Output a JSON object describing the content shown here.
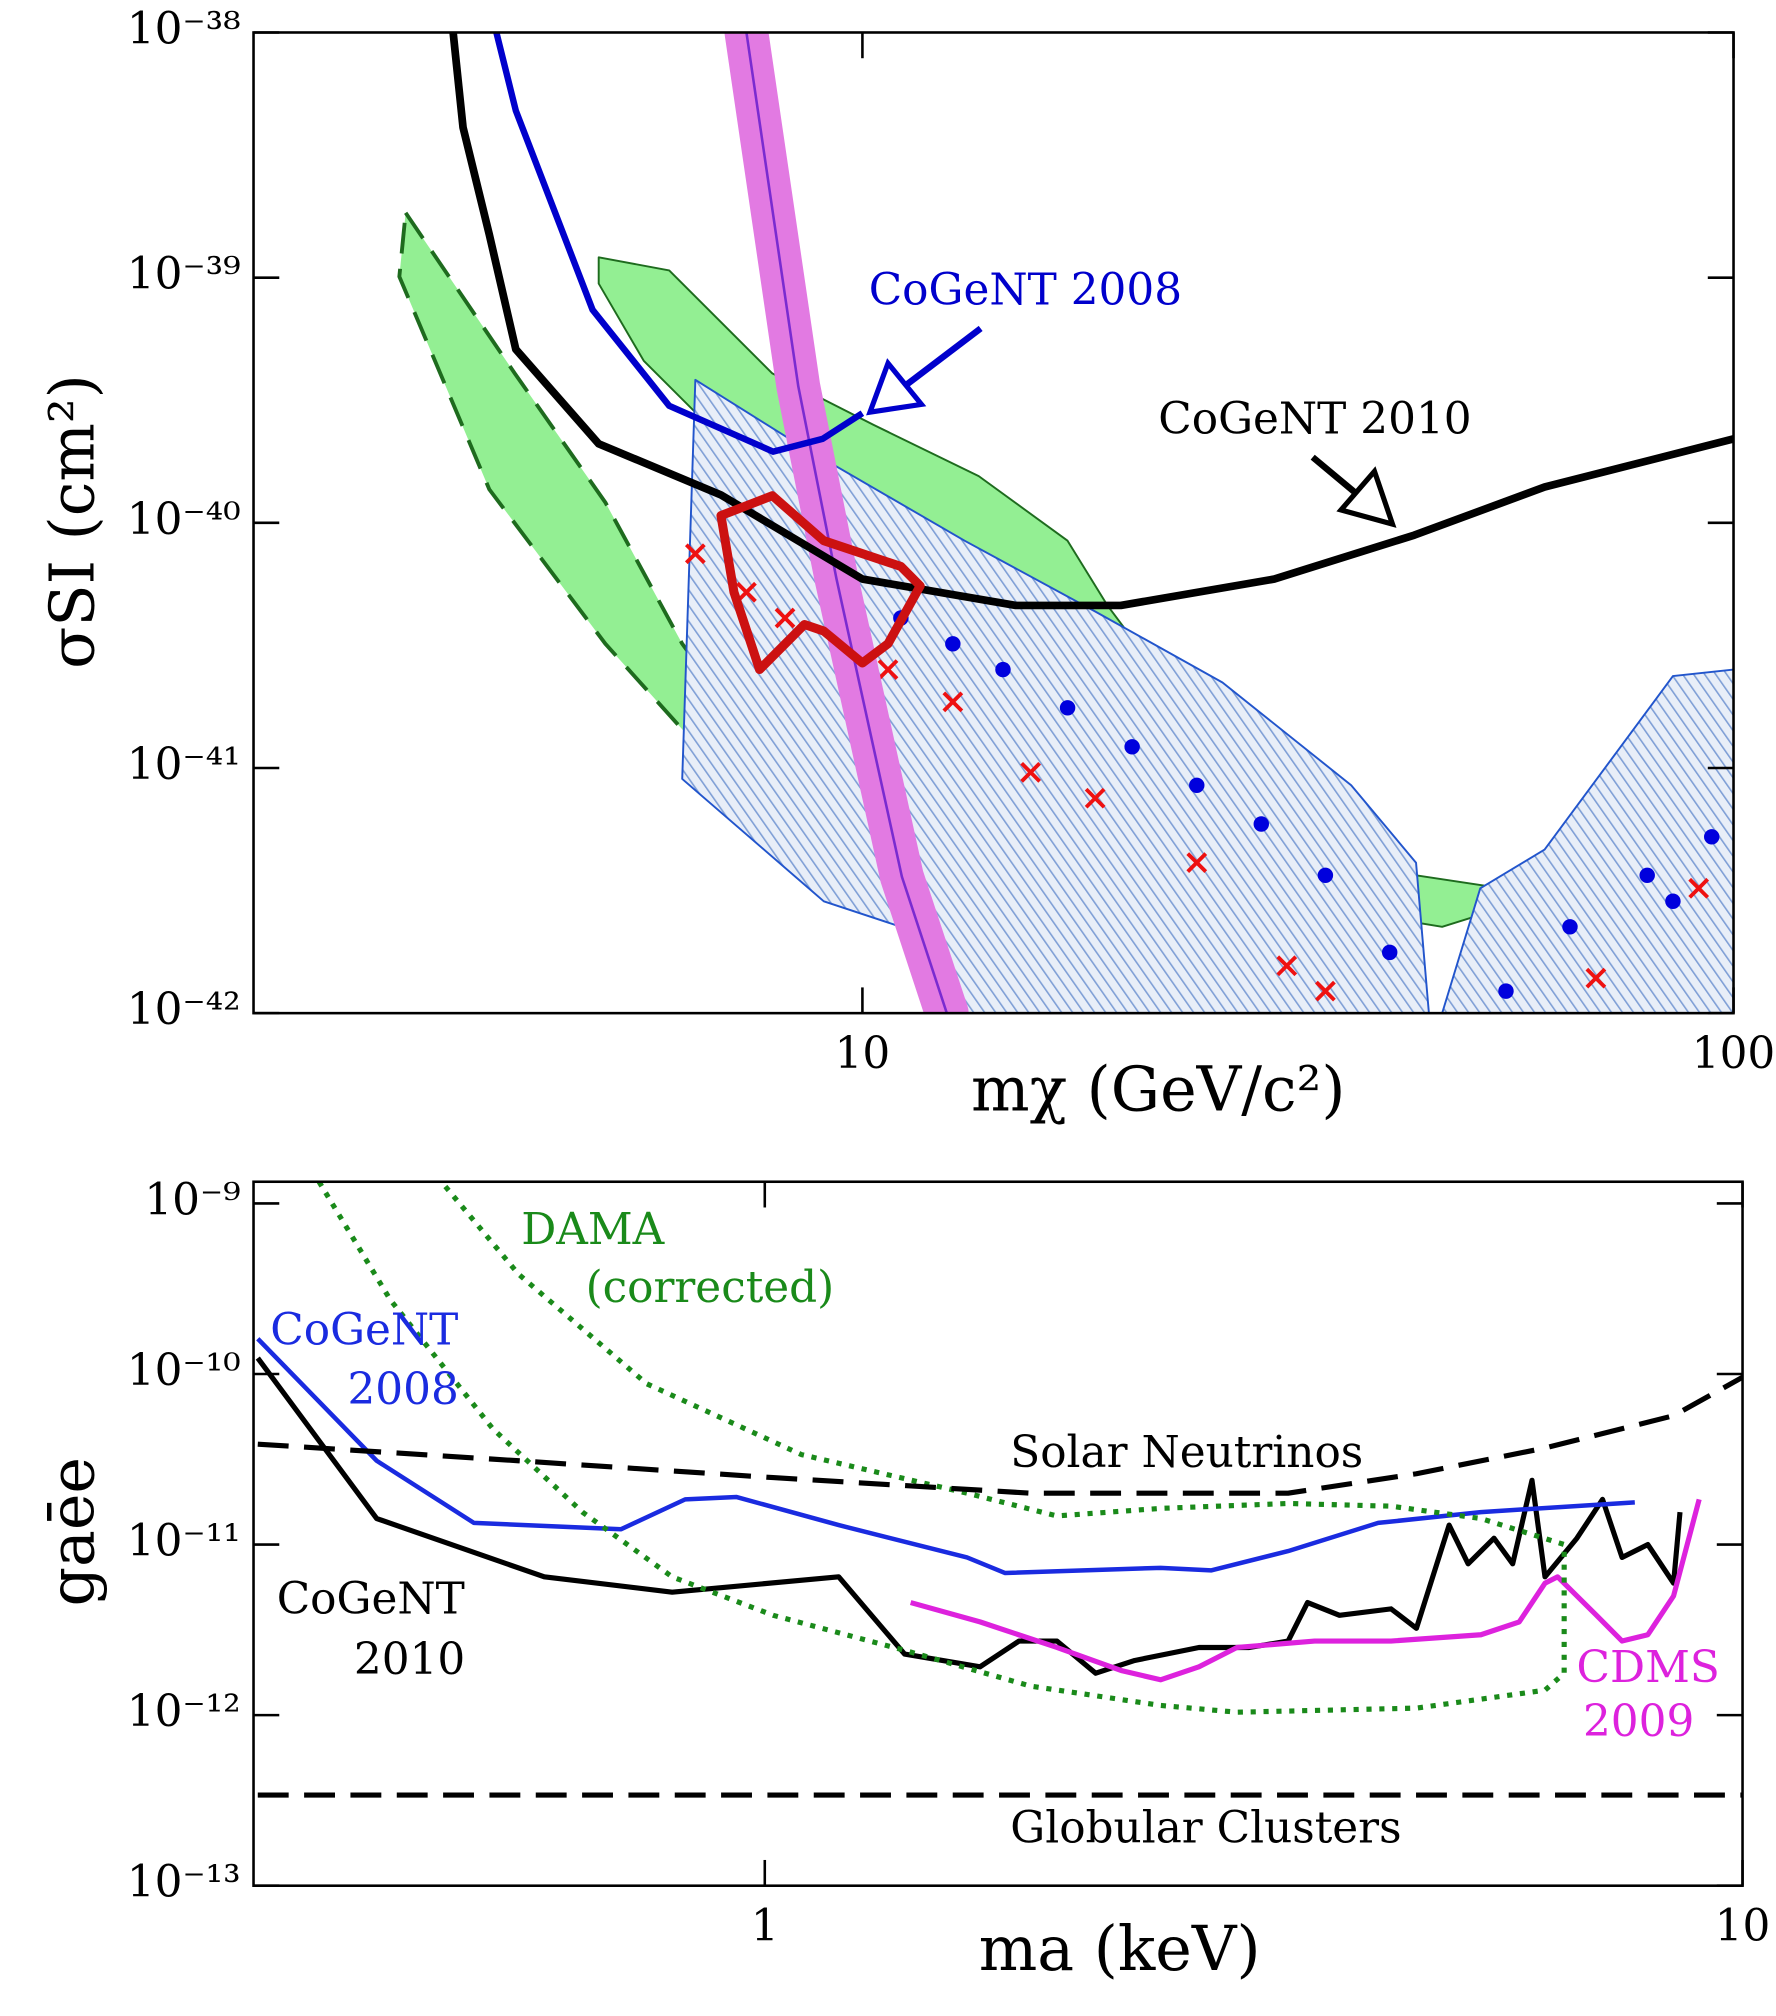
{
  "chart_data": [
    {
      "type": "line",
      "xscale": "log",
      "yscale": "log",
      "x_label": "mχ (GeV/c²)",
      "y_label": "σSI (cm²)",
      "xlim": [
        2,
        100
      ],
      "ylim": [
        1e-42,
        1e-38
      ],
      "xticks": [
        10,
        100
      ],
      "yticks": [
        {
          "value": 1e-42,
          "label": "10⁻⁴²"
        },
        {
          "value": 1e-41,
          "label": "10⁻⁴¹"
        },
        {
          "value": 1e-40,
          "label": "10⁻⁴⁰"
        },
        {
          "value": 1e-39,
          "label": "10⁻³⁹"
        },
        {
          "value": 1e-38,
          "label": "10⁻³⁸"
        }
      ],
      "series": [
        {
          "type": "area",
          "color": "#1e6b1e",
          "fill": "#93ef93",
          "style": "dashed",
          "width": 3,
          "x": [
            2.99,
            3.99,
            5.07,
            6.21,
            8.15,
            11.07,
            14.5,
            17.2,
            15.6,
            11.9,
            9.03,
            6.88,
            5.07,
            3.73,
            2.94
          ],
          "values": [
            1.84e-39,
            4.07e-40,
            1.21e-40,
            3.21e-41,
            8.5e-42,
            5.24e-42,
            4.53e-42,
            3.87e-42,
            3.04e-42,
            3.23e-42,
            4.65e-42,
            9.6e-42,
            3.21e-41,
            1.37e-40,
            1.01e-39
          ]
        },
        {
          "type": "area",
          "color": "#1e6b1e",
          "fill": "#93ef93",
          "width": 1.5,
          "x": [
            4.98,
            6.0,
            7.88,
            10.3,
            13.6,
            17.2,
            19.1,
            23.4,
            30.7,
            43.2,
            60.7,
            46.3,
            30.7,
            21.9,
            16.7,
            13.6,
            11.07,
            9.03,
            6.88,
            5.61,
            4.98
          ],
          "values": [
            1.21e-39,
            1.07e-39,
            4.07e-40,
            2.51e-40,
            1.55e-40,
            8.45e-41,
            4.62e-41,
            1.76e-41,
            7.53e-42,
            3.65e-42,
            3.04e-42,
            2.25e-42,
            2.86e-42,
            5.91e-42,
            1.56e-41,
            3.62e-41,
            6.64e-41,
            1.07e-40,
            2.22e-40,
            4.58e-40,
            9.46e-40
          ]
        },
        {
          "type": "area",
          "color": "#2255cc",
          "hatch": true,
          "width": 1.5,
          "x": [
            6.43,
            8.44,
            13.1,
            18.5,
            25.9,
            36.4,
            43.2,
            44.7,
            46.3,
            51.2,
            60.7,
            85.2,
            100,
            100,
            13.1,
            11.07,
            9.03,
            6.21
          ],
          "values": [
            3.83e-40,
            2.09e-40,
            8.45e-41,
            4.35e-41,
            2.23e-41,
            8.5e-42,
            4.11e-42,
            1e-42,
            1e-42,
            3.23e-42,
            4.65e-42,
            2.37e-41,
            2.52e-41,
            1e-42,
            1e-42,
            2.25e-42,
            2.86e-42,
            9.02e-42
          ]
        },
        {
          "type": "scatter",
          "marker": "dot",
          "color": "#0000dd",
          "x": [
            9.34,
            11.07,
            12.7,
            14.5,
            17.2,
            20.4,
            24.2,
            28.7,
            34.0,
            40.3,
            54.8,
            64.9,
            79.6,
            85.2,
            94.4
          ],
          "values": [
            5.21e-41,
            4.09e-41,
            3.21e-41,
            2.52e-41,
            1.76e-41,
            1.22e-41,
            8.5e-42,
            5.91e-42,
            3.65e-42,
            1.77e-42,
            1.23e-42,
            2.25e-42,
            3.65e-42,
            2.86e-42,
            5.24e-42
          ]
        },
        {
          "type": "scatter",
          "marker": "x",
          "color": "#ee1111",
          "x": [
            6.43,
            7.36,
            8.15,
            10.7,
            12.7,
            15.6,
            18.5,
            24.2,
            30.7,
            34.0,
            69.5,
            91.2
          ],
          "values": [
            7.48e-41,
            5.21e-41,
            4.09e-41,
            2.52e-41,
            1.86e-41,
            9.6e-42,
            7.53e-42,
            4.11e-42,
            1.56e-42,
            1.23e-42,
            1.39e-42,
            3.23e-42
          ]
        },
        {
          "type": "line",
          "color": "#7a2bd0",
          "band_color": "#e27ae2",
          "width": 2,
          "x": [
            7.36,
            8.44,
            9.34,
            11.1,
            12.5
          ],
          "values": [
            1e-38,
            3.6e-40,
            5.9e-41,
            3.6e-42,
            1e-42
          ]
        },
        {
          "type": "line",
          "name": "CoGeNT 2010",
          "color": "#000000",
          "width": 6,
          "x": [
            3.39,
            3.48,
            3.73,
            4.0,
            4.98,
            6.88,
            10,
            15,
            19.8,
            29.7,
            43,
            60.7,
            100
          ],
          "values": [
            1e-38,
            4.1e-39,
            1.5e-39,
            5.1e-40,
            2.1e-40,
            1.3e-40,
            5.9e-41,
            4.6e-41,
            4.6e-41,
            5.9e-41,
            8.9e-41,
            1.4e-40,
            2.2e-40
          ]
        },
        {
          "type": "line",
          "name": "CoGeNT 2008",
          "color": "#0000cc",
          "width": 5,
          "x": [
            3.8,
            4.0,
            4.9,
            6.0,
            7.9,
            9.0,
            10
          ],
          "values": [
            1e-38,
            4.8e-39,
            7.4e-40,
            3e-40,
            1.95e-40,
            2.2e-40,
            2.8e-40
          ]
        },
        {
          "type": "area",
          "color": "#cc1111",
          "width": 7,
          "x": [
            6.88,
            7.88,
            9.03,
            11.07,
            11.65,
            10.7,
            10,
            9.03,
            8.58,
            7.62,
            7.12
          ],
          "values": [
            1.07e-40,
            1.29e-40,
            8.45e-41,
            6.64e-41,
            5.53e-41,
            3.21e-41,
            2.68e-41,
            3.62e-41,
            3.85e-41,
            2.52e-41,
            5.21e-41
          ]
        }
      ]
    },
    {
      "type": "line",
      "xscale": "log",
      "yscale": "log",
      "x_label": "ma (keV)",
      "y_label": "gaēe",
      "xlim": [
        0.3,
        10
      ],
      "ylim": [
        1e-13,
        1.34e-09
      ],
      "xticks": [
        1,
        10
      ],
      "yticks": [
        {
          "value": 1e-13,
          "label": "10⁻¹³"
        },
        {
          "value": 1e-12,
          "label": "10⁻¹²"
        },
        {
          "value": 1e-11,
          "label": "10⁻¹¹"
        },
        {
          "value": 1e-10,
          "label": "10⁻¹⁰"
        },
        {
          "value": 1e-09,
          "label": "10⁻⁹"
        }
      ],
      "series": [
        {
          "type": "line",
          "name": "CoGeNT 2010",
          "color": "#000000",
          "width": 4,
          "x": [
            0.303,
            0.401,
            0.595,
            0.804,
            1.19,
            1.39,
            1.66,
            1.82,
            1.99,
            2.18,
            2.39,
            2.78,
            3.13,
            3.43,
            3.59,
            3.87,
            4.37,
            4.64,
            5.01,
            5.24,
            5.57,
            5.82,
            6.09,
            6.28,
            6.77,
            7.19,
            7.53,
            8.0,
            8.5,
            8.63
          ],
          "values": [
            1.24e-10,
            1.42e-11,
            6.47e-12,
            5.26e-12,
            6.47e-12,
            2.28e-12,
            1.92e-12,
            2.72e-12,
            2.72e-12,
            1.76e-12,
            2.09e-12,
            2.49e-12,
            2.49e-12,
            2.72e-12,
            4.57e-12,
            3.85e-12,
            4.2e-12,
            3.23e-12,
            1.3e-11,
            7.71e-12,
            1.09e-11,
            7.71e-12,
            2.38e-11,
            6.47e-12,
            1.09e-11,
            1.84e-11,
            8.41e-12,
            1e-11,
            5.94e-12,
            1.55e-11
          ]
        },
        {
          "type": "line",
          "name": "CoGeNT 2008",
          "color": "#1a2be0",
          "width": 3.5,
          "x": [
            0.303,
            0.401,
            0.504,
            0.713,
            0.829,
            0.936,
            1.19,
            1.61,
            1.76,
            2.54,
            2.86,
            3.43,
            4.24,
            5.4,
            7.76
          ],
          "values": [
            1.61e-10,
            3.1e-11,
            1.34e-11,
            1.23e-11,
            1.84e-11,
            1.9e-11,
            1.3e-11,
            8.41e-12,
            6.82e-12,
            7.31e-12,
            7.06e-12,
            9.16e-12,
            1.34e-11,
            1.55e-11,
            1.77e-11
          ]
        },
        {
          "type": "line",
          "name": "CDMS 2009",
          "color": "#dd22dd",
          "width": 4,
          "x": [
            1.41,
            1.66,
            1.99,
            2.32,
            2.54,
            2.78,
            3.04,
            3.65,
            4.37,
            5.4,
            5.91,
            6.28,
            6.47,
            7.09,
            7.53,
            8.0,
            8.5,
            9.03
          ],
          "values": [
            4.57e-12,
            3.52e-12,
            2.49e-12,
            1.82e-12,
            1.61e-12,
            1.92e-12,
            2.49e-12,
            2.72e-12,
            2.72e-12,
            2.96e-12,
            3.52e-12,
            5.94e-12,
            6.47e-12,
            3.85e-12,
            2.72e-12,
            2.96e-12,
            4.99e-12,
            1.84e-11
          ]
        },
        {
          "type": "line",
          "name": "DAMA (corrected)",
          "color": "#1a8a1a",
          "width": 4,
          "style": "dotted",
          "x": [
            0.35,
            0.414,
            0.527,
            0.651,
            0.804,
            1.02,
            1.39,
            1.87,
            2.54,
            3.04,
            4.64,
            6.28,
            6.57,
            6.57,
            5.4,
            4.37,
            3.43,
            2.54,
            1.99,
            1.61,
            1.09,
            0.757,
            0.56,
            0.467
          ],
          "values": [
            1.34e-09,
            2.72e-10,
            4.78e-11,
            1.55e-11,
            6.47e-12,
            3.85e-12,
            2.4e-12,
            1.48e-12,
            1.14e-12,
            1.04e-12,
            1.1e-12,
            1.4e-12,
            1.76e-12,
            1e-11,
            1.42e-11,
            1.68e-11,
            1.74e-11,
            1.63e-11,
            1.47e-11,
            2e-11,
            3.37e-11,
            8.77e-11,
            3.85e-10,
            1.34e-09
          ]
        },
        {
          "type": "line",
          "name": "Solar Neutrinos",
          "color": "#000000",
          "width": 4,
          "style": "dashed",
          "x": [
            0.303,
            0.56,
            1.02,
            1.87,
            3.43,
            4.64,
            6.28,
            8.5,
            10
          ],
          "values": [
            3.88e-11,
            3.1e-11,
            2.47e-11,
            2e-11,
            2e-11,
            2.6e-11,
            3.68e-11,
            5.69e-11,
            9.57e-11
          ]
        },
        {
          "type": "line",
          "name": "Globular Clusters",
          "color": "#000000",
          "width": 4,
          "style": "dashed",
          "x": [
            0.303,
            10
          ],
          "values": [
            3.4e-13,
            3.4e-13
          ]
        }
      ]
    }
  ]
}
